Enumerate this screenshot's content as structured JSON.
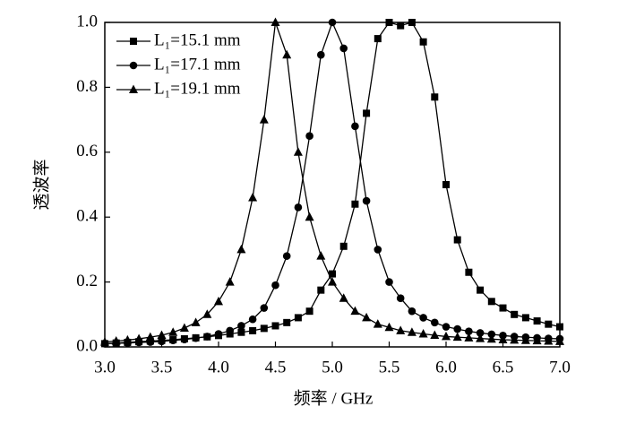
{
  "chart_data": {
    "type": "line",
    "x_label": "频率 / GHz",
    "y_label": "透波率",
    "x": [
      3.0,
      3.1,
      3.2,
      3.3,
      3.4,
      3.5,
      3.6,
      3.7,
      3.8,
      3.9,
      4.0,
      4.1,
      4.2,
      4.3,
      4.4,
      4.5,
      4.6,
      4.7,
      4.8,
      4.9,
      5.0,
      5.1,
      5.2,
      5.3,
      5.4,
      5.5,
      5.6,
      5.7,
      5.8,
      5.9,
      6.0,
      6.1,
      6.2,
      6.3,
      6.4,
      6.5,
      6.6,
      6.7,
      6.8,
      6.9,
      7.0
    ],
    "series": [
      {
        "name": "L₁=15.1 mm",
        "color": "#000000",
        "marker": "square",
        "values": [
          0.01,
          0.012,
          0.014,
          0.016,
          0.018,
          0.02,
          0.022,
          0.025,
          0.028,
          0.031,
          0.035,
          0.04,
          0.045,
          0.05,
          0.057,
          0.065,
          0.075,
          0.09,
          0.11,
          0.175,
          0.225,
          0.31,
          0.44,
          0.72,
          0.95,
          1.0,
          0.99,
          1.0,
          0.94,
          0.77,
          0.5,
          0.33,
          0.23,
          0.175,
          0.14,
          0.12,
          0.1,
          0.09,
          0.08,
          0.07,
          0.062
        ]
      },
      {
        "name": "L₁=17.1 mm",
        "color": "#000000",
        "marker": "circle",
        "values": [
          0.01,
          0.011,
          0.012,
          0.014,
          0.015,
          0.017,
          0.02,
          0.023,
          0.027,
          0.032,
          0.04,
          0.05,
          0.065,
          0.085,
          0.12,
          0.19,
          0.28,
          0.43,
          0.65,
          0.9,
          1.0,
          0.92,
          0.68,
          0.45,
          0.3,
          0.2,
          0.15,
          0.11,
          0.09,
          0.075,
          0.062,
          0.055,
          0.048,
          0.043,
          0.039,
          0.035,
          0.032,
          0.03,
          0.028,
          0.026,
          0.025
        ]
      },
      {
        "name": "L₁=19.1 mm",
        "color": "#000000",
        "marker": "triangle",
        "values": [
          0.015,
          0.018,
          0.021,
          0.025,
          0.03,
          0.036,
          0.045,
          0.058,
          0.075,
          0.1,
          0.14,
          0.2,
          0.3,
          0.46,
          0.7,
          1.0,
          0.9,
          0.6,
          0.4,
          0.28,
          0.2,
          0.15,
          0.11,
          0.09,
          0.07,
          0.06,
          0.05,
          0.045,
          0.04,
          0.036,
          0.032,
          0.03,
          0.028,
          0.026,
          0.024,
          0.022,
          0.021,
          0.02,
          0.019,
          0.018,
          0.017
        ]
      }
    ],
    "xlim": [
      3.0,
      7.0
    ],
    "xticks": [
      {
        "value": 3.0,
        "label": "3.0"
      },
      3.5,
      {
        "value": 4.0,
        "label": "4.0"
      },
      4.5,
      {
        "value": 5.0,
        "label": "5.0"
      },
      5.5,
      {
        "value": 6.0,
        "label": "6.0"
      },
      6.5,
      {
        "value": 7.0,
        "label": "7.0"
      }
    ],
    "ylim": [
      0,
      1.0
    ],
    "yticks": [
      {
        "value": 0,
        "label": "0.0"
      },
      0.2,
      0.4,
      0.6,
      0.8,
      {
        "value": 1.0,
        "label": "1.0"
      }
    ],
    "legend": "upper left"
  }
}
